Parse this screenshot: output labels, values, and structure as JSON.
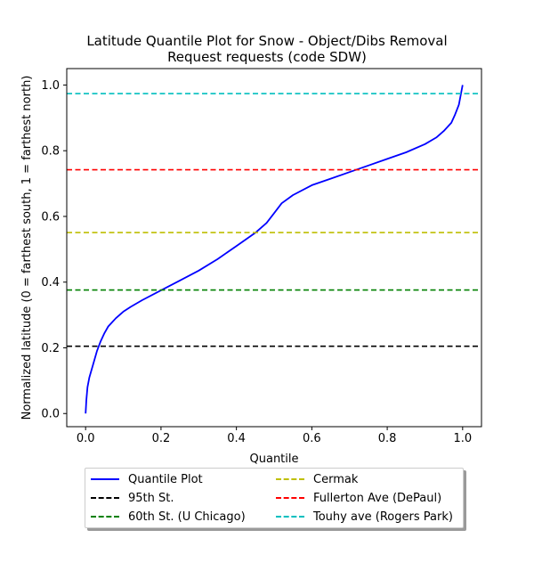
{
  "chart_data": {
    "type": "line",
    "title": [
      "Latitude Quantile Plot for Snow - Object/Dibs Removal",
      "Request  requests (code SDW)"
    ],
    "xlabel": "Quantile",
    "ylabel": "Normalized latitude (0 = farthest south, 1 = farthest north)",
    "xlim": [
      -0.05,
      1.05
    ],
    "ylim": [
      -0.04,
      1.05
    ],
    "xticks": [
      "0.0",
      "0.2",
      "0.4",
      "0.6",
      "0.8",
      "1.0"
    ],
    "yticks": [
      "0.0",
      "0.2",
      "0.4",
      "0.6",
      "0.8",
      "1.0"
    ],
    "grid": false,
    "legend_position": "below",
    "series": [
      {
        "name": "Quantile Plot",
        "color": "#0000ff",
        "style": "solid",
        "x": [
          0.0,
          0.002,
          0.005,
          0.01,
          0.02,
          0.03,
          0.04,
          0.05,
          0.06,
          0.08,
          0.1,
          0.12,
          0.15,
          0.2,
          0.25,
          0.3,
          0.35,
          0.4,
          0.45,
          0.48,
          0.5,
          0.52,
          0.55,
          0.6,
          0.65,
          0.7,
          0.75,
          0.8,
          0.85,
          0.9,
          0.93,
          0.95,
          0.97,
          0.98,
          0.99,
          0.995,
          1.0
        ],
        "y": [
          0.0,
          0.04,
          0.08,
          0.11,
          0.15,
          0.19,
          0.22,
          0.245,
          0.265,
          0.29,
          0.31,
          0.325,
          0.345,
          0.375,
          0.405,
          0.435,
          0.47,
          0.51,
          0.55,
          0.58,
          0.61,
          0.64,
          0.665,
          0.695,
          0.715,
          0.735,
          0.755,
          0.775,
          0.795,
          0.82,
          0.84,
          0.86,
          0.885,
          0.91,
          0.94,
          0.97,
          1.0
        ]
      },
      {
        "name": "95th St.",
        "color": "#000000",
        "style": "dashed",
        "hline": 0.205
      },
      {
        "name": "60th St. (U Chicago)",
        "color": "#008000",
        "style": "dashed",
        "hline": 0.376
      },
      {
        "name": "Cermak",
        "color": "#bfbf00",
        "style": "dashed",
        "hline": 0.551
      },
      {
        "name": "Fullerton Ave (DePaul)",
        "color": "#ff0000",
        "style": "dashed",
        "hline": 0.742
      },
      {
        "name": "Touhy ave (Rogers Park)",
        "color": "#00bfbf",
        "style": "dashed",
        "hline": 0.974
      }
    ]
  }
}
